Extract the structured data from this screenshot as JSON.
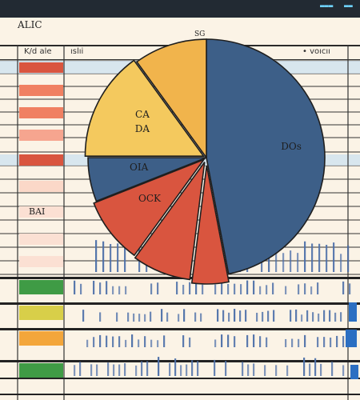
{
  "toolbar": {
    "badge_1": "▬▬▬",
    "badge_2": "▬▬"
  },
  "ruler": {
    "left_label": "ALIC",
    "center_label": "SG"
  },
  "header": {
    "col_1": "K/d  ale",
    "col_2": "ıslıi",
    "col_3": "• voıcıı"
  },
  "side": {
    "row_label": "BAI"
  },
  "colors": {
    "blue": "#3d5f88",
    "red": "#d9553f",
    "yellow": "#f4c95e",
    "yellow_dark": "#f1b44c",
    "green": "#3f9b45",
    "olive": "#d8cf49",
    "orange": "#f3a63b",
    "bars": "#4b6ea8"
  },
  "chart_data": {
    "type": "pie",
    "slices": [
      {
        "label": "DOs",
        "value": 47
      },
      {
        "label": "",
        "value": 5
      },
      {
        "label": "",
        "value": 8
      },
      {
        "label": "OCK",
        "value": 9
      },
      {
        "label": "OIA",
        "value": 6
      },
      {
        "label": "CA\nDA",
        "value": 15
      },
      {
        "label": "",
        "value": 10
      }
    ]
  }
}
